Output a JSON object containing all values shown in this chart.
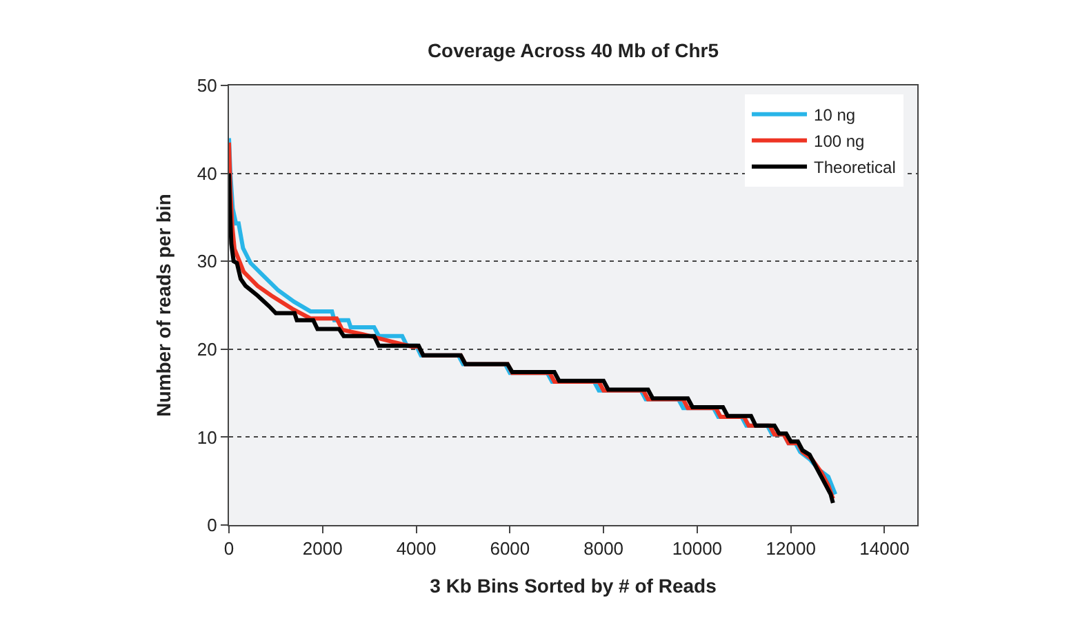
{
  "chart_data": {
    "type": "line",
    "title": "Coverage Across 40 Mb of Chr5",
    "xlabel": "3 Kb Bins Sorted by # of Reads",
    "ylabel": "Number of reads per bin",
    "xlim": [
      0,
      14700
    ],
    "xticks": [
      0,
      2000,
      4000,
      6000,
      8000,
      10000,
      12000,
      14000
    ],
    "ylim": [
      0,
      50
    ],
    "yticks": [
      0,
      10,
      20,
      30,
      40,
      50
    ],
    "grid": "y",
    "legend": "top right",
    "line_style": "solid",
    "marker": "none",
    "series": [
      {
        "name": "10 ng",
        "color": "#29b5e8",
        "x": [
          0,
          30,
          80,
          150,
          206,
          300,
          462,
          707,
          1050,
          1390,
          1740,
          2200,
          2250,
          2550,
          2600,
          3100,
          3200,
          3700,
          3800,
          4000,
          4100,
          4900,
          5000,
          5900,
          6000,
          6800,
          6900,
          7800,
          7900,
          8800,
          8900,
          9600,
          9700,
          10350,
          10450,
          10950,
          11050,
          11500,
          11600,
          11850,
          11950,
          12100,
          12200,
          12400,
          12600,
          12800,
          12950
        ],
        "values": [
          44,
          40,
          36,
          34.3,
          34.3,
          31.5,
          29.8,
          28.5,
          26.7,
          25.4,
          24.3,
          24.3,
          23.3,
          23.3,
          22.5,
          22.5,
          21.5,
          21.5,
          20.4,
          20.4,
          19.3,
          19.3,
          18.3,
          18.3,
          17.3,
          17.3,
          16.3,
          16.3,
          15.3,
          15.3,
          14.3,
          14.3,
          13.3,
          13.3,
          12.3,
          12.3,
          11.3,
          11.3,
          10.3,
          10.3,
          9.3,
          9.3,
          8.3,
          7.5,
          6.3,
          5.5,
          3.5
        ]
      },
      {
        "name": "100 ng",
        "color": "#ee3524",
        "x": [
          0,
          30,
          70,
          118,
          315,
          610,
          905,
          1350,
          1740,
          2300,
          2420,
          2860,
          3450,
          3900,
          4050,
          4150,
          4950,
          5050,
          5950,
          6050,
          6850,
          6950,
          7900,
          8000,
          8850,
          8950,
          9700,
          9800,
          10400,
          10500,
          11000,
          11100,
          11550,
          11650,
          11850,
          11950,
          12150,
          12250,
          12450,
          12650,
          12800,
          12900
        ],
        "values": [
          43.5,
          38,
          34,
          31.4,
          28.8,
          27.2,
          26.1,
          24.6,
          23.5,
          23.5,
          22.2,
          21.7,
          20.9,
          20.3,
          20.3,
          19.3,
          19.3,
          18.3,
          18.3,
          17.3,
          17.3,
          16.3,
          16.3,
          15.3,
          15.3,
          14.3,
          14.3,
          13.3,
          13.3,
          12.3,
          12.3,
          11.3,
          11.3,
          10.3,
          10.3,
          9.3,
          9.3,
          8.3,
          7.5,
          6,
          4.5,
          3
        ]
      },
      {
        "name": "Theoretical",
        "color": "#000000",
        "x": [
          0,
          20,
          50,
          100,
          170,
          250,
          354,
          610,
          855,
          1000,
          1400,
          1450,
          1800,
          1890,
          2350,
          2450,
          3100,
          3200,
          4050,
          4150,
          4950,
          5050,
          5950,
          6050,
          6950,
          7050,
          8000,
          8100,
          8950,
          9050,
          9800,
          9900,
          10550,
          10650,
          11150,
          11250,
          11650,
          11750,
          11900,
          12000,
          12150,
          12250,
          12400,
          12550,
          12700,
          12850,
          12900
        ],
        "values": [
          40,
          36,
          32,
          30,
          29.8,
          28,
          27.2,
          26.1,
          24.9,
          24.1,
          24.1,
          23.3,
          23.3,
          22.3,
          22.3,
          21.5,
          21.5,
          20.4,
          20.4,
          19.3,
          19.3,
          18.3,
          18.3,
          17.4,
          17.4,
          16.4,
          16.4,
          15.4,
          15.4,
          14.4,
          14.4,
          13.4,
          13.4,
          12.4,
          12.4,
          11.3,
          11.3,
          10.4,
          10.4,
          9.5,
          9.5,
          8.5,
          8,
          6.5,
          5,
          3.5,
          2.5
        ]
      }
    ]
  }
}
